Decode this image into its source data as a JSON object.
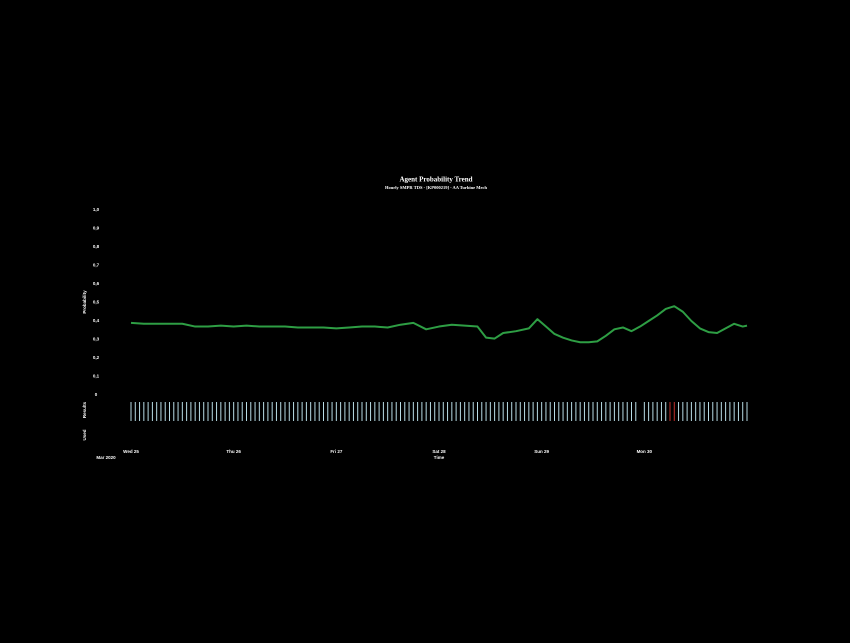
{
  "chart_data": {
    "type": "line",
    "title": "Agent Probability Trend",
    "subtitle": "Hourly SMPR TDS - [KP000219] - AA Turbine Mech",
    "ylabel": "Probability",
    "xlabel": "Time",
    "x_sublabel": "Mar 2020",
    "row_labels": [
      "Results",
      "Used"
    ],
    "xlim": [
      0,
      144
    ],
    "xticks": [
      {
        "value": 0,
        "label": "Wed 25"
      },
      {
        "value": 24,
        "label": "Thu 26"
      },
      {
        "value": 48,
        "label": "Fri 27"
      },
      {
        "value": 72,
        "label": "Sat 28"
      },
      {
        "value": 96,
        "label": "Sun 29"
      },
      {
        "value": 120,
        "label": "Mon 30"
      }
    ],
    "ylim": [
      0,
      1
    ],
    "yticks": [
      0,
      {
        "value": 0.1,
        "label": "0,1"
      },
      {
        "value": 0.2,
        "label": "0,2"
      },
      {
        "value": 0.3,
        "label": "0,3"
      },
      {
        "value": 0.4,
        "label": "0,4"
      },
      {
        "value": 0.5,
        "label": "0,5"
      },
      {
        "value": 0.6,
        "label": "0,6"
      },
      {
        "value": 0.7,
        "label": "0,7"
      },
      {
        "value": 0.8,
        "label": "0,8"
      },
      {
        "value": 0.9,
        "label": "0,9"
      },
      {
        "value": 1,
        "label": "1,0"
      }
    ],
    "series": [
      {
        "color": "#2e9e44",
        "x": [
          0,
          3,
          6,
          9,
          12,
          15,
          18,
          21,
          24,
          27,
          30,
          33,
          36,
          39,
          42,
          45,
          48,
          51,
          54,
          57,
          60,
          63,
          66,
          69,
          72,
          75,
          78,
          81,
          83,
          85,
          87,
          90,
          93,
          95,
          97,
          99,
          101,
          103,
          105,
          107,
          109,
          111,
          113,
          115,
          117,
          119,
          121,
          123,
          125,
          127,
          129,
          131,
          133,
          135,
          137,
          139,
          141,
          143,
          144
        ],
        "values": [
          0.39,
          0.385,
          0.385,
          0.385,
          0.385,
          0.37,
          0.37,
          0.375,
          0.37,
          0.375,
          0.37,
          0.37,
          0.37,
          0.365,
          0.365,
          0.365,
          0.36,
          0.365,
          0.37,
          0.37,
          0.365,
          0.38,
          0.39,
          0.355,
          0.37,
          0.38,
          0.375,
          0.37,
          0.31,
          0.305,
          0.335,
          0.345,
          0.36,
          0.41,
          0.37,
          0.33,
          0.31,
          0.295,
          0.285,
          0.285,
          0.29,
          0.32,
          0.355,
          0.365,
          0.345,
          0.37,
          0.4,
          0.43,
          0.465,
          0.48,
          0.45,
          0.4,
          0.36,
          0.34,
          0.335,
          0.36,
          0.385,
          0.37,
          0.375
        ]
      }
    ],
    "results": {
      "colors": [
        "#b8dce6",
        "#c0302c"
      ],
      "x": [
        0,
        1,
        2,
        3,
        4,
        5,
        6,
        7,
        8,
        9,
        10,
        11,
        12,
        13,
        14,
        15,
        16,
        17,
        18,
        19,
        20,
        21,
        22,
        23,
        24,
        25,
        26,
        27,
        28,
        29,
        30,
        31,
        32,
        33,
        34,
        35,
        36,
        37,
        38,
        39,
        40,
        41,
        42,
        43,
        44,
        45,
        46,
        47,
        48,
        49,
        50,
        51,
        52,
        53,
        54,
        55,
        56,
        57,
        58,
        59,
        60,
        61,
        62,
        63,
        64,
        65,
        66,
        67,
        68,
        69,
        70,
        71,
        72,
        73,
        74,
        75,
        76,
        77,
        78,
        79,
        80,
        81,
        82,
        83,
        84,
        85,
        86,
        87,
        88,
        89,
        90,
        91,
        92,
        93,
        94,
        95,
        96,
        97,
        98,
        99,
        100,
        101,
        102,
        103,
        104,
        105,
        106,
        107,
        108,
        109,
        110,
        111,
        112,
        113,
        114,
        115,
        116,
        117,
        118,
        120,
        121,
        122,
        123,
        124,
        125,
        126,
        127,
        128,
        129,
        130,
        131,
        132,
        133,
        134,
        135,
        136,
        137,
        138,
        139,
        140,
        141,
        142,
        143,
        144
      ],
      "values": [
        0,
        0,
        0,
        0,
        0,
        0,
        0,
        0,
        0,
        0,
        0,
        0,
        0,
        0,
        0,
        0,
        0,
        0,
        0,
        0,
        0,
        0,
        0,
        0,
        0,
        0,
        0,
        0,
        0,
        0,
        0,
        0,
        0,
        0,
        0,
        0,
        0,
        0,
        0,
        0,
        0,
        0,
        0,
        0,
        0,
        0,
        0,
        0,
        0,
        0,
        0,
        0,
        0,
        0,
        0,
        0,
        0,
        0,
        0,
        0,
        0,
        0,
        0,
        0,
        0,
        0,
        0,
        0,
        0,
        0,
        0,
        0,
        0,
        0,
        0,
        0,
        0,
        0,
        0,
        0,
        0,
        0,
        0,
        0,
        0,
        0,
        0,
        0,
        0,
        0,
        0,
        0,
        0,
        0,
        0,
        0,
        0,
        0,
        0,
        0,
        0,
        0,
        0,
        0,
        0,
        0,
        0,
        0,
        0,
        0,
        0,
        0,
        0,
        0,
        0,
        0,
        0,
        0,
        0,
        0,
        0,
        0,
        0,
        0,
        0,
        1,
        1,
        0,
        0,
        0,
        0,
        0,
        0,
        0,
        0,
        0,
        0,
        0,
        0,
        0,
        0,
        0,
        0,
        0
      ]
    }
  }
}
